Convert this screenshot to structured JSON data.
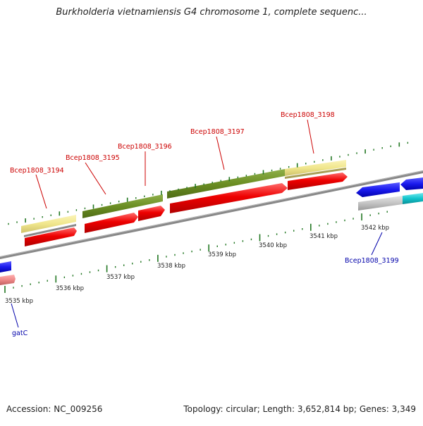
{
  "header": {
    "title": "Burkholderia vietnamiensis G4 chromosome 1, complete sequenc..."
  },
  "footer": {
    "accession_text": "Accession: NC_009256",
    "summary_text": "Topology: circular; Length: 3,652,814 bp; Genes: 3,349"
  },
  "axis": {
    "ticks": [
      {
        "label": "3535 kbp"
      },
      {
        "label": "3536 kbp"
      },
      {
        "label": "3537 kbp"
      },
      {
        "label": "3538 kbp"
      },
      {
        "label": "3539 kbp"
      },
      {
        "label": "3540 kbp"
      },
      {
        "label": "3541 kbp"
      },
      {
        "label": "3542 kbp"
      }
    ]
  },
  "gene_labels": [
    {
      "name": "Bcep1808_3194",
      "strand": "forward"
    },
    {
      "name": "Bcep1808_3195",
      "strand": "forward"
    },
    {
      "name": "Bcep1808_3196",
      "strand": "forward"
    },
    {
      "name": "Bcep1808_3197",
      "strand": "forward"
    },
    {
      "name": "Bcep1808_3198",
      "strand": "forward"
    },
    {
      "name": "Bcep1808_3199",
      "strand": "reverse"
    },
    {
      "name": "gatC",
      "strand": "reverse"
    }
  ],
  "colors": {
    "forward_label": "#cc0000",
    "reverse_label": "#0000aa",
    "backbone": "#888888",
    "tick_green": "#227722",
    "cds_red": "#ee0000",
    "gene_green": "#6b8e23",
    "pale_yellow": "#f0e68c",
    "blue": "#1a1aee",
    "cyan": "#11c4cc",
    "light_gray": "#c4c4c4",
    "salmon": "#ee8888"
  }
}
